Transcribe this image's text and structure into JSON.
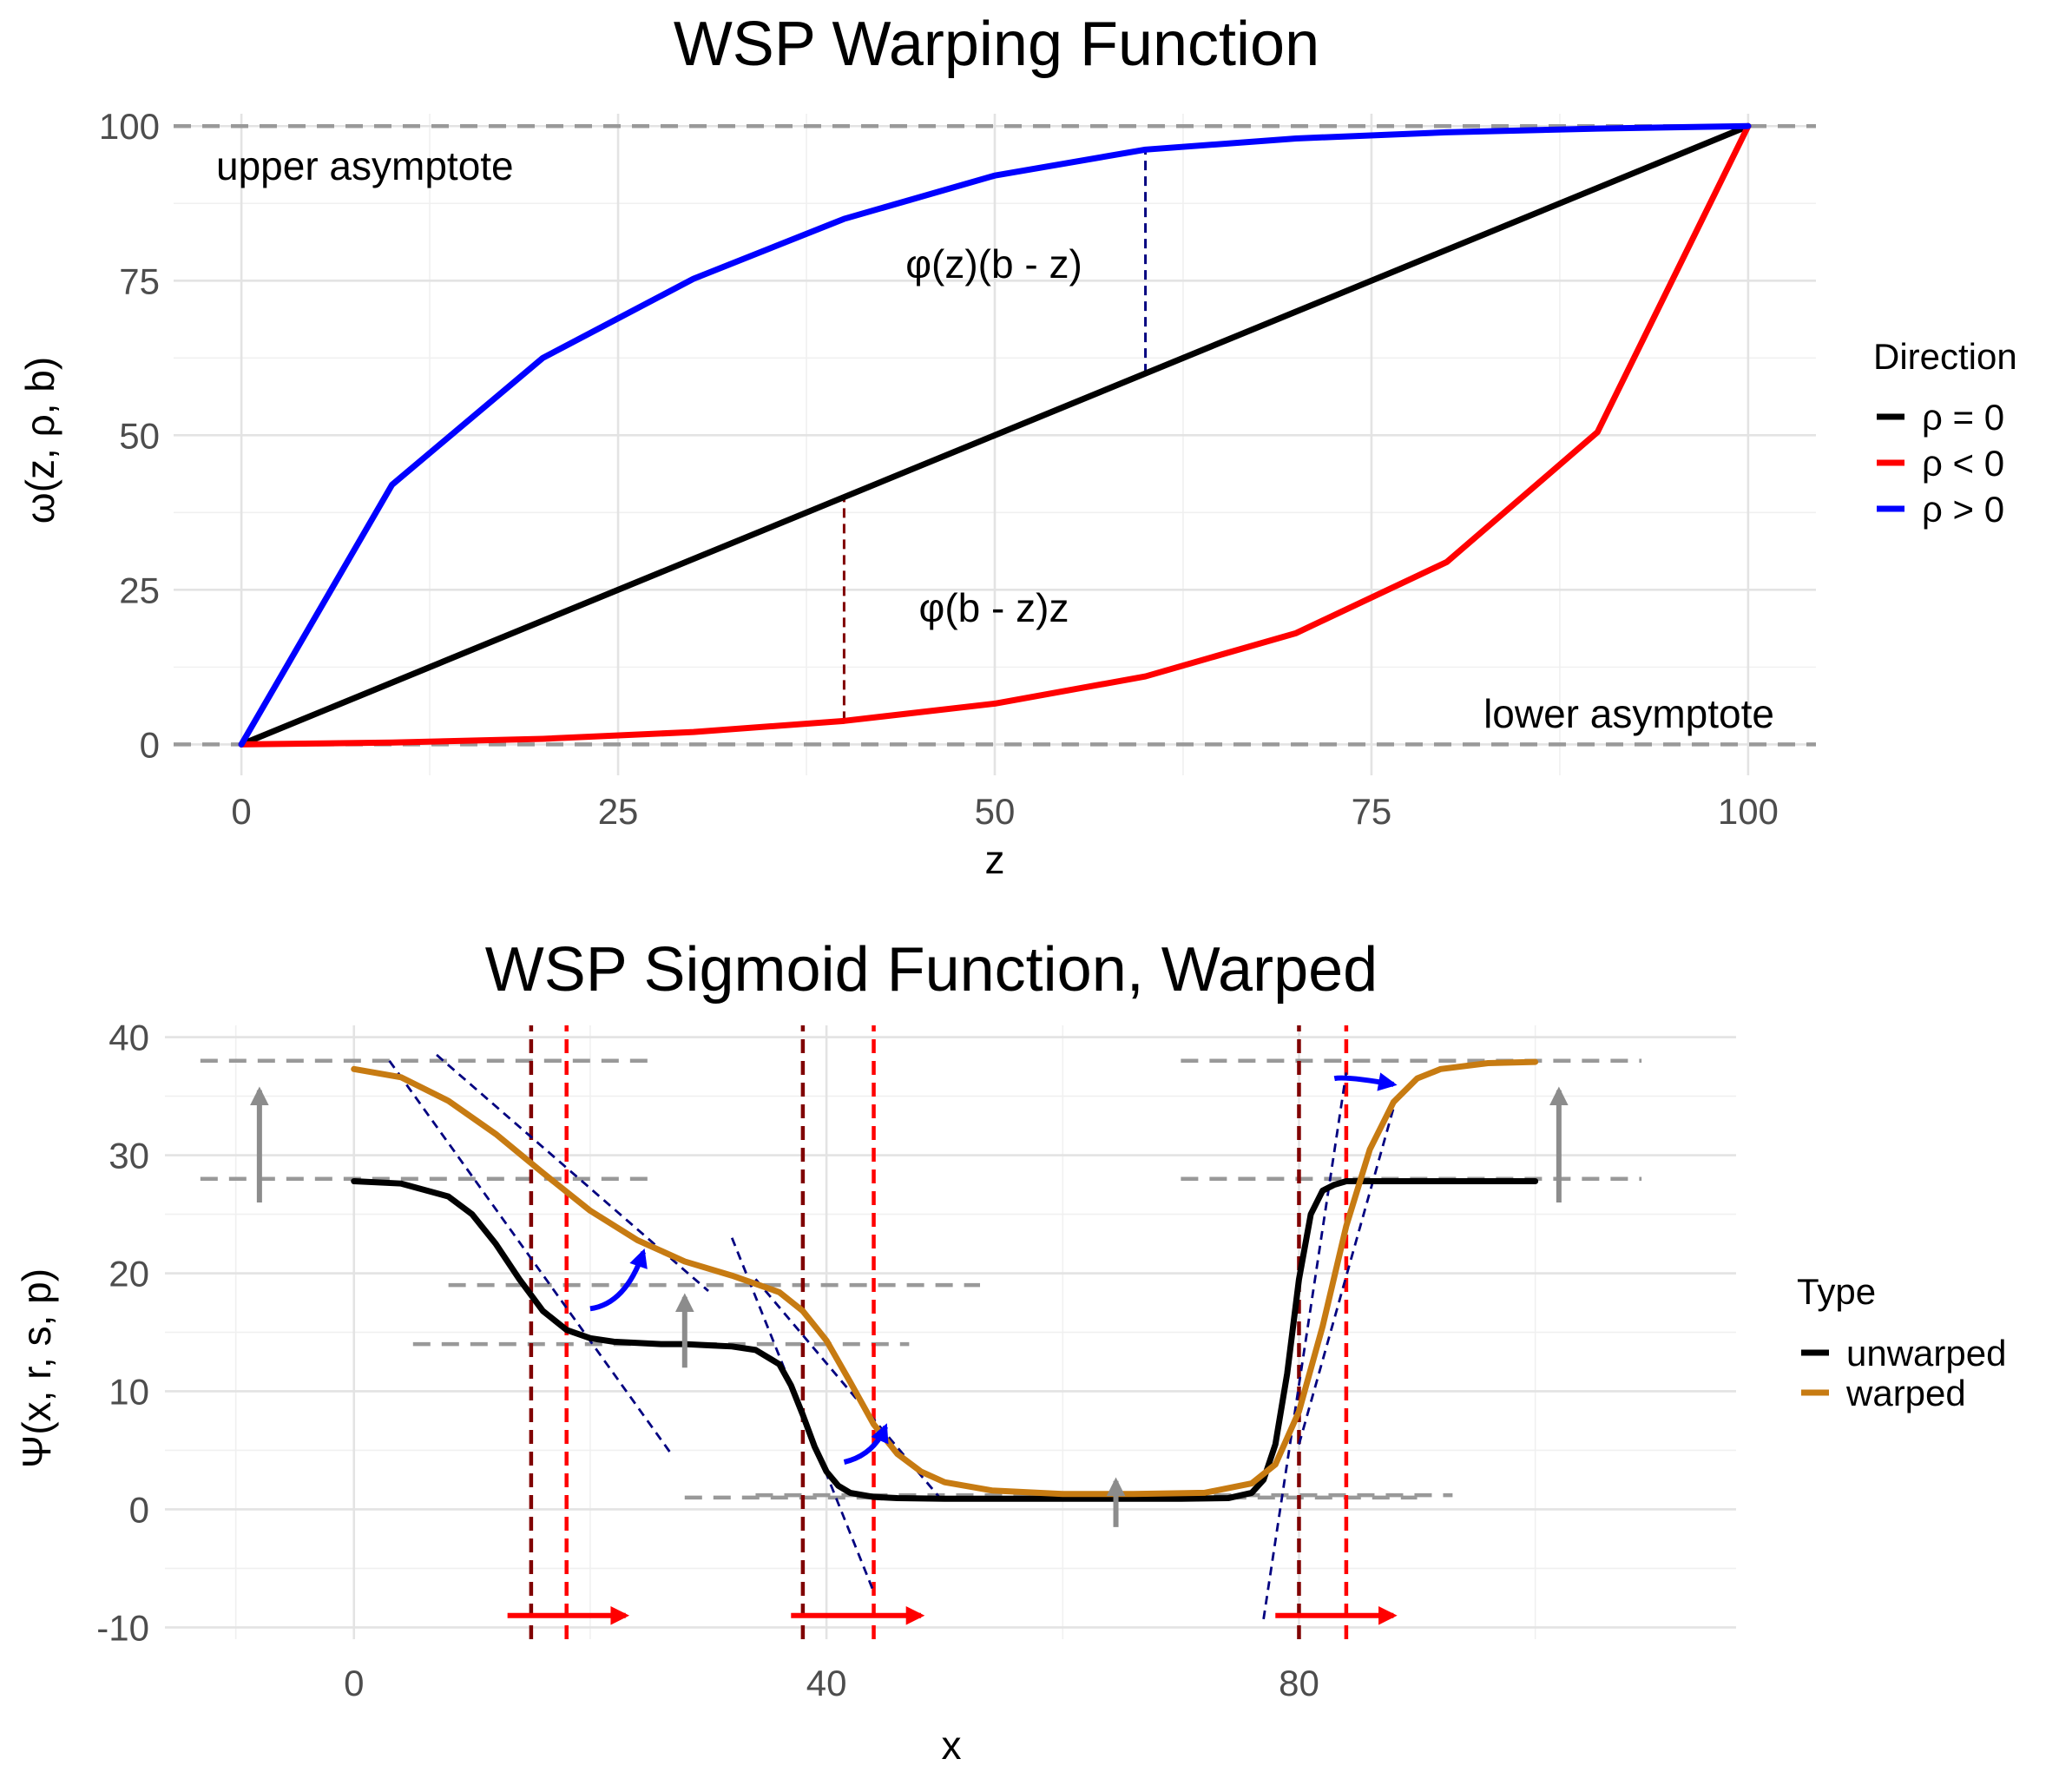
{
  "chart_data": [
    {
      "type": "line",
      "title": "WSP Warping Function",
      "xlabel": "z",
      "ylabel": "ω(z, ρ, b)",
      "xlim": [
        -4.5,
        104.5
      ],
      "ylim": [
        -5,
        102
      ],
      "xticks": [
        0,
        25,
        50,
        75,
        100
      ],
      "xtick_labels": [
        "0",
        "25",
        "50",
        "75",
        "100"
      ],
      "yticks": [
        0,
        25,
        50,
        75,
        100
      ],
      "ytick_labels": [
        "0",
        "25",
        "50",
        "75",
        "100"
      ],
      "grid": true,
      "legend": {
        "title": "Direction",
        "position": "right",
        "entries": [
          {
            "label": "ρ = 0",
            "color": "#000000"
          },
          {
            "label": "ρ < 0",
            "color": "#ff0000"
          },
          {
            "label": "ρ > 0",
            "color": "#0000ff"
          }
        ]
      },
      "series": [
        {
          "name": "ρ = 0",
          "color": "#000000",
          "x": [
            0,
            100
          ],
          "y": [
            0,
            100
          ]
        },
        {
          "name": "ρ < 0",
          "color": "#ff0000",
          "x": [
            0,
            10,
            20,
            30,
            40,
            50,
            60,
            70,
            80,
            90,
            100
          ],
          "y": [
            0,
            0.3,
            0.9,
            2.0,
            3.8,
            6.6,
            11.0,
            18.0,
            29.5,
            50.5,
            100
          ]
        },
        {
          "name": "ρ > 0",
          "color": "#0000ff",
          "x": [
            0,
            10,
            20,
            30,
            40,
            50,
            60,
            70,
            80,
            90,
            100
          ],
          "y": [
            0,
            42.0,
            62.5,
            75.3,
            85.0,
            92.0,
            96.2,
            98.0,
            99.0,
            99.6,
            100
          ]
        }
      ],
      "reference_lines": [
        {
          "kind": "hline",
          "y": 100,
          "label": "upper asymptote"
        },
        {
          "kind": "hline",
          "y": 0,
          "label": "lower asymptote"
        }
      ],
      "segments": [
        {
          "x": 60,
          "y0": 60,
          "y1": 96.2,
          "color": "#000080",
          "label": "φ(z)(b - z)"
        },
        {
          "x": 40,
          "y0": 3.8,
          "y1": 40,
          "color": "#800000",
          "label": "φ(b - z)z"
        }
      ],
      "annotations": {
        "upper": "upper asymptote",
        "lower": "lower asymptote",
        "phi_top": "φ(z)(b - z)",
        "phi_bottom": "φ(b - z)z"
      }
    },
    {
      "type": "line",
      "title": "WSP Sigmoid Function, Warped",
      "xlabel": "x",
      "ylabel": "Ψ(x, r, s, p)",
      "xlim": [
        -16,
        117
      ],
      "ylim": [
        -11,
        41
      ],
      "xticks": [
        0,
        40,
        80
      ],
      "xtick_labels": [
        "0",
        "40",
        "80"
      ],
      "yticks": [
        -10,
        0,
        10,
        20,
        30,
        40
      ],
      "ytick_labels": [
        "-10",
        "0",
        "10",
        "20",
        "30",
        "40"
      ],
      "grid": true,
      "legend": {
        "title": "Type",
        "position": "right",
        "entries": [
          {
            "label": "unwarped",
            "color": "#000000"
          },
          {
            "label": "warped",
            "color": "#c77b12"
          }
        ]
      },
      "series": [
        {
          "name": "unwarped",
          "color": "#000000",
          "x": [
            0,
            4,
            8,
            10,
            12,
            14,
            16,
            18,
            20,
            22,
            24,
            26,
            28,
            30,
            32,
            34,
            36,
            37,
            38,
            39,
            40,
            41,
            42,
            44,
            46,
            50,
            60,
            70,
            74,
            76,
            77,
            78,
            79,
            80,
            81,
            82,
            83,
            84,
            86,
            90,
            100
          ],
          "y": [
            27.8,
            27.6,
            26.5,
            25.0,
            22.5,
            19.5,
            16.8,
            15.2,
            14.5,
            14.2,
            14.1,
            14.0,
            14.0,
            13.9,
            13.8,
            13.5,
            12.3,
            10.5,
            8.0,
            5.3,
            3.2,
            2.0,
            1.4,
            1.05,
            0.95,
            0.9,
            0.9,
            0.9,
            0.95,
            1.4,
            2.5,
            5.5,
            11.5,
            19.5,
            25.0,
            27.0,
            27.5,
            27.8,
            27.8,
            27.8,
            27.8
          ]
        },
        {
          "name": "warped",
          "color": "#c77b12",
          "x": [
            0,
            4,
            8,
            12,
            16,
            20,
            24,
            28,
            32,
            36,
            38,
            40,
            42,
            44,
            46,
            48,
            50,
            54,
            60,
            66,
            72,
            76,
            78,
            80,
            82,
            84,
            86,
            88,
            90,
            92,
            96,
            100
          ],
          "y": [
            37.3,
            36.6,
            34.6,
            31.8,
            28.5,
            25.3,
            22.8,
            21.0,
            19.8,
            18.4,
            16.8,
            14.3,
            10.8,
            7.2,
            4.7,
            3.2,
            2.3,
            1.6,
            1.3,
            1.3,
            1.4,
            2.2,
            3.8,
            8.3,
            15.5,
            24.0,
            30.5,
            34.5,
            36.5,
            37.3,
            37.8,
            37.9
          ]
        }
      ],
      "annotations": {
        "asymptote_lines": [
          {
            "x0": -13,
            "x1": 25,
            "y": 38
          },
          {
            "x0": -13,
            "x1": 25,
            "y": 28
          },
          {
            "x0": 8,
            "x1": 53,
            "y": 19
          },
          {
            "x0": 5,
            "x1": 47,
            "y": 14
          },
          {
            "x0": 28,
            "x1": 90,
            "y": 1
          },
          {
            "x0": 34,
            "x1": 93,
            "y": 1.2
          },
          {
            "x0": 70,
            "x1": 109,
            "y": 38
          },
          {
            "x0": 70,
            "x1": 109,
            "y": 28
          }
        ],
        "inflection_lines": [
          {
            "x": 15,
            "color": "#800000"
          },
          {
            "x": 18,
            "color": "#ff0000"
          },
          {
            "x": 38,
            "color": "#800000"
          },
          {
            "x": 44,
            "color": "#ff0000"
          },
          {
            "x": 80,
            "color": "#800000"
          },
          {
            "x": 84,
            "color": "#ff0000"
          }
        ],
        "tangent_lines": [
          {
            "x0": 3,
            "y0": 38,
            "x1": 27,
            "y1": 4.5
          },
          {
            "x0": 7,
            "y0": 38.5,
            "x1": 30,
            "y1": 18.5
          },
          {
            "x0": 32,
            "y0": 23,
            "x1": 44,
            "y1": -7
          },
          {
            "x0": 34,
            "y0": 19.5,
            "x1": 50,
            "y1": 0.5
          },
          {
            "x0": 77,
            "y0": -9.3,
            "x1": 84,
            "y1": 37
          },
          {
            "x0": 80,
            "y0": 5.5,
            "x1": 88,
            "y1": 34
          }
        ],
        "shift_arrows": [
          {
            "x0": 13,
            "x1": 23,
            "y": -9
          },
          {
            "x0": 37,
            "x1": 48,
            "y": -9
          },
          {
            "x0": 78,
            "x1": 88,
            "y": -9
          }
        ],
        "level_arrows": [
          {
            "x": -8,
            "y0": 26,
            "y1": 35.5
          },
          {
            "x": 28,
            "y0": 12,
            "y1": 18
          },
          {
            "x": 64.5,
            "y0": -1.5,
            "y1": 2.4
          },
          {
            "x": 102,
            "y0": 26,
            "y1": 35.5
          }
        ],
        "curved_arrows": [
          {
            "points": [
              [
                20,
                17
              ],
              [
                23,
                17.4
              ],
              [
                24.5,
                21.8
              ]
            ]
          },
          {
            "points": [
              [
                41.5,
                4
              ],
              [
                44,
                4.6
              ],
              [
                45,
                7
              ]
            ]
          },
          {
            "points": [
              [
                83,
                36.5
              ],
              [
                84,
                36.7
              ],
              [
                88,
                36
              ]
            ]
          }
        ]
      }
    }
  ]
}
